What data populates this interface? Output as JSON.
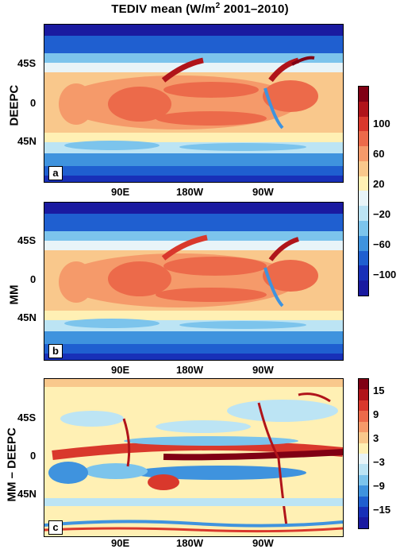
{
  "figure": {
    "title_prefix": "TEDIV mean (W/m",
    "title_sup": "2",
    "title_suffix": "  2001–2010)"
  },
  "panels": [
    {
      "id": "a",
      "ylabel": "DEEPC",
      "letter": "a",
      "lat_labels": [
        "45S",
        "0",
        "45N"
      ],
      "lon_labels": [
        "90E",
        "180W",
        "90W"
      ]
    },
    {
      "id": "b",
      "ylabel": "MM",
      "letter": "b",
      "lat_labels": [
        "45S",
        "0",
        "45N"
      ],
      "lon_labels": [
        "90E",
        "180W",
        "90W"
      ]
    },
    {
      "id": "c",
      "ylabel": "MM – DEEPC",
      "letter": "c",
      "lat_labels": [
        "45S",
        "0",
        "45N"
      ],
      "lon_labels": [
        "90E",
        "180W",
        "90W"
      ]
    }
  ],
  "colorbars": {
    "top": {
      "labels": [
        "100",
        "60",
        "20",
        "−20",
        "−60",
        "−100"
      ],
      "colors": [
        "#800014",
        "#b0141a",
        "#d9382c",
        "#ec6a4a",
        "#f59a6a",
        "#f9c88c",
        "#fff0b4",
        "#e8f4f8",
        "#bce4f4",
        "#7cc4ec",
        "#3f93de",
        "#1f5fd0",
        "#1830b8",
        "#1a1aa0"
      ]
    },
    "bottom": {
      "labels": [
        "15",
        "9",
        "3",
        "−3",
        "−9",
        "−15"
      ],
      "colors": [
        "#800014",
        "#b0141a",
        "#d9382c",
        "#ec6a4a",
        "#f59a6a",
        "#f9c88c",
        "#fff0b4",
        "#e8f4f8",
        "#bce4f4",
        "#7cc4ec",
        "#3f93de",
        "#1f5fd0",
        "#1830b8",
        "#1a1aa0"
      ]
    }
  }
}
